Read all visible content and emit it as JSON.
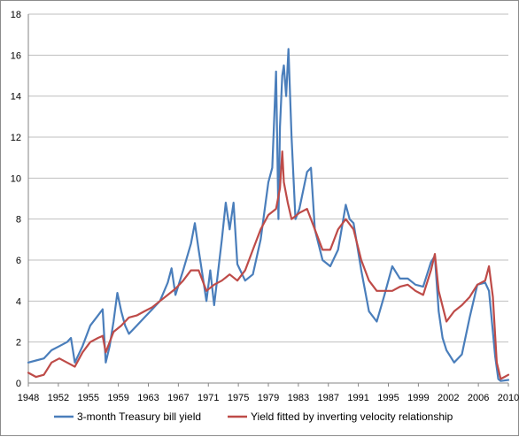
{
  "chart_data": {
    "type": "line",
    "title": "",
    "xlabel": "",
    "ylabel": "",
    "xlim": [
      1948,
      2010
    ],
    "ylim": [
      0,
      18
    ],
    "y_ticks": [
      0,
      2,
      4,
      6,
      8,
      10,
      12,
      14,
      16,
      18
    ],
    "x_tick_labels": [
      "1948",
      "1952",
      "1955",
      "1959",
      "1963",
      "1967",
      "1971",
      "1975",
      "1979",
      "1983",
      "1987",
      "1991",
      "1995",
      "1999",
      "2002",
      "2006",
      "2010"
    ],
    "grid": "horizontal",
    "legend_position": "bottom",
    "series": [
      {
        "name": "3-month Treasury bill yield",
        "color": "#4a7ebb",
        "x": [
          1948.0,
          1949.0,
          1950.0,
          1951.0,
          1952.0,
          1953.0,
          1953.5,
          1954.0,
          1955.0,
          1956.0,
          1957.0,
          1957.6,
          1958.0,
          1958.5,
          1959.0,
          1959.5,
          1960.0,
          1960.5,
          1961.0,
          1962.0,
          1963.0,
          1964.0,
          1965.0,
          1966.0,
          1966.5,
          1967.0,
          1968.0,
          1969.0,
          1969.5,
          1970.0,
          1971.0,
          1971.5,
          1972.0,
          1973.0,
          1973.5,
          1974.0,
          1974.5,
          1975.0,
          1976.0,
          1977.0,
          1978.0,
          1979.0,
          1979.5,
          1980.0,
          1980.3,
          1980.5,
          1980.8,
          1981.0,
          1981.3,
          1981.6,
          1982.0,
          1982.5,
          1983.0,
          1984.0,
          1984.5,
          1985.0,
          1986.0,
          1987.0,
          1988.0,
          1989.0,
          1989.5,
          1990.0,
          1991.0,
          1992.0,
          1993.0,
          1994.0,
          1995.0,
          1996.0,
          1997.0,
          1998.0,
          1999.0,
          2000.0,
          2000.5,
          2001.0,
          2001.5,
          2002.0,
          2003.0,
          2004.0,
          2005.0,
          2006.0,
          2007.0,
          2007.5,
          2008.0,
          2008.3,
          2008.7,
          2009.0,
          2010.0
        ],
        "values": [
          1.0,
          1.1,
          1.2,
          1.6,
          1.8,
          2.0,
          2.2,
          1.0,
          1.8,
          2.8,
          3.3,
          3.6,
          1.0,
          1.8,
          3.0,
          4.4,
          3.5,
          2.8,
          2.4,
          2.8,
          3.2,
          3.6,
          4.0,
          4.9,
          5.6,
          4.3,
          5.5,
          6.8,
          7.8,
          6.5,
          4.0,
          5.5,
          3.8,
          7.0,
          8.8,
          7.5,
          8.8,
          5.8,
          5.0,
          5.3,
          7.0,
          9.8,
          10.5,
          15.2,
          8.0,
          12.5,
          15.0,
          15.5,
          14.0,
          16.3,
          12.0,
          8.0,
          8.5,
          10.3,
          10.5,
          7.5,
          6.0,
          5.7,
          6.5,
          8.7,
          8.0,
          7.8,
          5.5,
          3.5,
          3.0,
          4.3,
          5.7,
          5.1,
          5.1,
          4.8,
          4.7,
          5.9,
          6.2,
          3.5,
          2.2,
          1.6,
          1.0,
          1.4,
          3.2,
          4.8,
          4.9,
          4.5,
          2.5,
          1.3,
          0.2,
          0.1,
          0.15
        ]
      },
      {
        "name": "Yield fitted by inverting velocity relationship",
        "color": "#be4b48",
        "x": [
          1948.0,
          1949.0,
          1950.0,
          1951.0,
          1952.0,
          1953.0,
          1954.0,
          1955.0,
          1956.0,
          1957.0,
          1957.6,
          1958.0,
          1959.0,
          1960.0,
          1961.0,
          1962.0,
          1963.0,
          1964.0,
          1965.0,
          1966.0,
          1967.0,
          1968.0,
          1969.0,
          1970.0,
          1971.0,
          1972.0,
          1973.0,
          1974.0,
          1975.0,
          1976.0,
          1977.0,
          1978.0,
          1979.0,
          1980.0,
          1980.5,
          1980.8,
          1981.0,
          1981.5,
          1982.0,
          1983.0,
          1984.0,
          1985.0,
          1986.0,
          1987.0,
          1988.0,
          1989.0,
          1990.0,
          1991.0,
          1992.0,
          1993.0,
          1994.0,
          1995.0,
          1996.0,
          1997.0,
          1998.0,
          1999.0,
          2000.0,
          2000.5,
          2001.0,
          2002.0,
          2003.0,
          2004.0,
          2005.0,
          2006.0,
          2007.0,
          2007.5,
          2008.0,
          2008.5,
          2009.0,
          2009.5,
          2010.0
        ],
        "values": [
          0.5,
          0.3,
          0.4,
          1.0,
          1.2,
          1.0,
          0.8,
          1.5,
          2.0,
          2.2,
          2.3,
          1.5,
          2.5,
          2.8,
          3.2,
          3.3,
          3.5,
          3.7,
          4.0,
          4.3,
          4.6,
          5.0,
          5.5,
          5.5,
          4.5,
          4.8,
          5.0,
          5.3,
          5.0,
          5.5,
          6.5,
          7.5,
          8.2,
          8.5,
          9.5,
          11.3,
          9.8,
          8.8,
          8.0,
          8.3,
          8.5,
          7.5,
          6.5,
          6.5,
          7.5,
          8.0,
          7.5,
          6.0,
          5.0,
          4.5,
          4.5,
          4.5,
          4.7,
          4.8,
          4.5,
          4.3,
          5.5,
          6.3,
          4.5,
          3.0,
          3.5,
          3.8,
          4.2,
          4.8,
          5.0,
          5.7,
          4.2,
          1.0,
          0.2,
          0.3,
          0.4
        ]
      }
    ]
  }
}
